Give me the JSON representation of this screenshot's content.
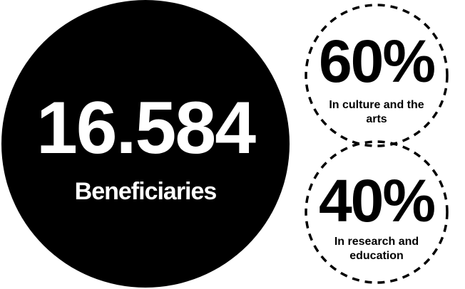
{
  "main": {
    "number": "16.584",
    "label": "Beneficiaries"
  },
  "stats": [
    {
      "value": "60%",
      "label": "In culture and the arts"
    },
    {
      "value": "40%",
      "label": "In research and education"
    }
  ],
  "colors": {
    "primary": "#000000",
    "background": "#ffffff"
  }
}
